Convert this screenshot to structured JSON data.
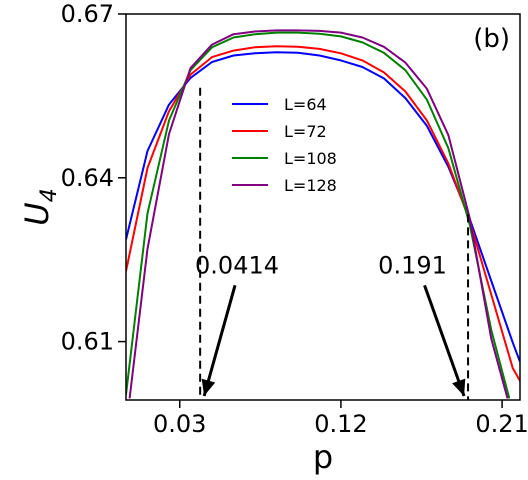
{
  "chart_data": {
    "type": "line",
    "panel_label": "(b)",
    "xlabel": "p",
    "ylabel_base": "U",
    "ylabel_sub": "4",
    "xlim": [
      0.0,
      0.22
    ],
    "ylim": [
      0.5993,
      0.67
    ],
    "xticks": [
      0.03,
      0.12,
      0.21
    ],
    "xtick_labels": [
      "0.03",
      "0.12",
      "0.21"
    ],
    "yticks": [
      0.61,
      0.64,
      0.67
    ],
    "ytick_labels": [
      "0.61",
      "0.64",
      "0.67"
    ],
    "grid": false,
    "legend_position": "center",
    "series": [
      {
        "name": "L=64",
        "color": "#0000ff",
        "x": [
          0.0,
          0.012,
          0.024,
          0.036,
          0.048,
          0.06,
          0.072,
          0.084,
          0.096,
          0.108,
          0.12,
          0.132,
          0.144,
          0.156,
          0.168,
          0.18,
          0.192,
          0.204,
          0.216,
          0.22
        ],
        "y": [
          0.6287,
          0.6449,
          0.6534,
          0.6583,
          0.6612,
          0.6624,
          0.6628,
          0.663,
          0.6629,
          0.6624,
          0.6615,
          0.6603,
          0.6582,
          0.6546,
          0.6495,
          0.642,
          0.6324,
          0.6211,
          0.6098,
          0.6063
        ]
      },
      {
        "name": "L=72",
        "color": "#ff0000",
        "x": [
          0.0,
          0.012,
          0.024,
          0.036,
          0.048,
          0.06,
          0.072,
          0.084,
          0.096,
          0.108,
          0.12,
          0.132,
          0.144,
          0.156,
          0.168,
          0.18,
          0.192,
          0.204,
          0.216,
          0.22
        ],
        "y": [
          0.6229,
          0.6418,
          0.6522,
          0.6589,
          0.6621,
          0.6633,
          0.6639,
          0.6641,
          0.664,
          0.6636,
          0.6628,
          0.6615,
          0.6593,
          0.6558,
          0.6505,
          0.6426,
          0.632,
          0.6186,
          0.6051,
          0.6028
        ]
      },
      {
        "name": "L=108",
        "color": "#008000",
        "x": [
          0.0,
          0.012,
          0.024,
          0.036,
          0.048,
          0.06,
          0.072,
          0.084,
          0.096,
          0.108,
          0.12,
          0.132,
          0.144,
          0.156,
          0.168,
          0.18,
          0.192,
          0.204,
          0.214
        ],
        "y": [
          0.6003,
          0.6335,
          0.6505,
          0.6597,
          0.6639,
          0.6657,
          0.6663,
          0.6666,
          0.6666,
          0.6664,
          0.6659,
          0.6648,
          0.6629,
          0.6597,
          0.6543,
          0.6454,
          0.6313,
          0.6121,
          0.5996
        ]
      },
      {
        "name": "L=128",
        "color": "#800080",
        "x": [
          0.002,
          0.012,
          0.024,
          0.036,
          0.048,
          0.06,
          0.072,
          0.084,
          0.096,
          0.108,
          0.12,
          0.132,
          0.144,
          0.156,
          0.168,
          0.18,
          0.192,
          0.204,
          0.213
        ],
        "y": [
          0.5996,
          0.627,
          0.648,
          0.6601,
          0.6644,
          0.6663,
          0.6668,
          0.667,
          0.667,
          0.6669,
          0.6666,
          0.6657,
          0.664,
          0.6611,
          0.6563,
          0.6478,
          0.6325,
          0.6105,
          0.5996
        ]
      }
    ],
    "annotations": [
      {
        "text": "0.0414",
        "x": 0.0414,
        "y": 0.6565,
        "text_x": 0.062,
        "text_y": 0.6225
      },
      {
        "text": "0.191",
        "x": 0.191,
        "y": 0.6333,
        "text_x": 0.16,
        "text_y": 0.6225
      }
    ]
  }
}
